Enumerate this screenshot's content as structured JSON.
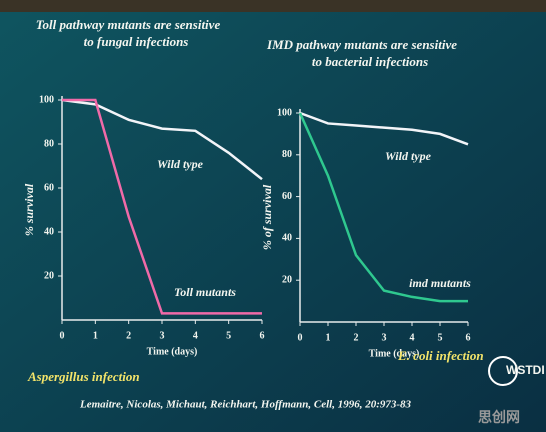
{
  "chart_data": [
    {
      "type": "line",
      "title": [
        "Toll pathway mutants are sensitive",
        "to fungal infections"
      ],
      "x_label": "Time (days)",
      "y_label": "% survival",
      "annotation": "Aspergillus infection",
      "x": [
        0,
        1,
        2,
        3,
        4,
        5,
        6
      ],
      "series": [
        {
          "name": "Wild type",
          "color": "#f2f4f8",
          "values": [
            100,
            98,
            91,
            87,
            86,
            76,
            64
          ]
        },
        {
          "name": "Toll mutants",
          "color": "#f06aa8",
          "values": [
            100,
            100,
            47,
            3,
            3,
            3,
            3
          ]
        }
      ],
      "xlim": [
        0,
        6
      ],
      "xticks": [
        0,
        1,
        2,
        3,
        4,
        5,
        6
      ],
      "ylim": [
        0,
        100
      ],
      "yticks": [
        20,
        40,
        60,
        80,
        100
      ]
    },
    {
      "type": "line",
      "title": [
        "IMD pathway mutants are sensitive",
        "to bacterial infections"
      ],
      "x_label": "Time (days)",
      "y_label": "% of survival",
      "annotation": "E. coli infection",
      "x": [
        0,
        1,
        2,
        3,
        4,
        5,
        6
      ],
      "series": [
        {
          "name": "Wild type",
          "color": "#f2f4f8",
          "values": [
            100,
            95,
            94,
            93,
            92,
            90,
            85
          ]
        },
        {
          "name": "imd mutants",
          "color": "#2fc88f",
          "values": [
            100,
            70,
            32,
            15,
            12,
            10,
            10
          ]
        }
      ],
      "xlim": [
        0,
        6
      ],
      "xticks": [
        0,
        1,
        2,
        3,
        4,
        5,
        6
      ],
      "ylim": [
        0,
        100
      ],
      "yticks": [
        20,
        40,
        60,
        80,
        100
      ]
    }
  ],
  "citation": "Lemaitre, Nicolas, Michaut, Reichhart, Hoffmann, Cell, 1996, 20:973-83",
  "logo": "WSTDI",
  "watermark": "思创网"
}
